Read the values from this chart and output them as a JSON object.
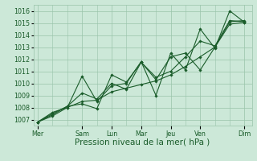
{
  "bg_color": "#cce8d8",
  "grid_color": "#99c4aa",
  "line_color": "#1a5c2a",
  "xlabel": "Pression niveau de la mer( hPa )",
  "xlabel_fontsize": 7.5,
  "tick_fontsize": 5.8,
  "ylim": [
    1006.5,
    1016.5
  ],
  "yticks": [
    1007,
    1008,
    1009,
    1010,
    1011,
    1012,
    1013,
    1014,
    1015,
    1016
  ],
  "xtick_labels": [
    "Mer",
    "Sam",
    "Lun",
    "Mar",
    "Jeu",
    "Ven",
    "Dim"
  ],
  "xtick_positions": [
    0,
    3,
    5,
    7,
    9,
    11,
    14
  ],
  "xlim": [
    -0.3,
    14.5
  ],
  "series": [
    [
      1006.8,
      1007.5,
      1008.1,
      1008.3,
      1007.9,
      1010.7,
      1010.1,
      1011.75,
      1010.3,
      1012.2,
      1012.5,
      1011.1,
      1013.0,
      1015.1,
      1015.2
    ],
    [
      1006.8,
      1007.6,
      1008.0,
      1010.6,
      1008.5,
      1009.8,
      1010.0,
      1011.8,
      1009.0,
      1012.5,
      1011.1,
      1014.5,
      1012.9,
      1016.0,
      1015.05
    ],
    [
      1006.8,
      1007.4,
      1008.1,
      1009.2,
      1008.7,
      1010.0,
      1009.5,
      1011.75,
      1010.5,
      1011.0,
      1012.2,
      1013.5,
      1013.1,
      1015.2,
      1015.1
    ],
    [
      1006.8,
      1007.3,
      1008.0,
      1008.5,
      1008.6,
      1009.3,
      1009.6,
      1009.9,
      1010.2,
      1010.7,
      1011.4,
      1012.2,
      1013.0,
      1014.9,
      1015.05
    ]
  ],
  "x_data": [
    0,
    1,
    2,
    3,
    4,
    5,
    6,
    7,
    8,
    9,
    10,
    11,
    12,
    13,
    14
  ]
}
